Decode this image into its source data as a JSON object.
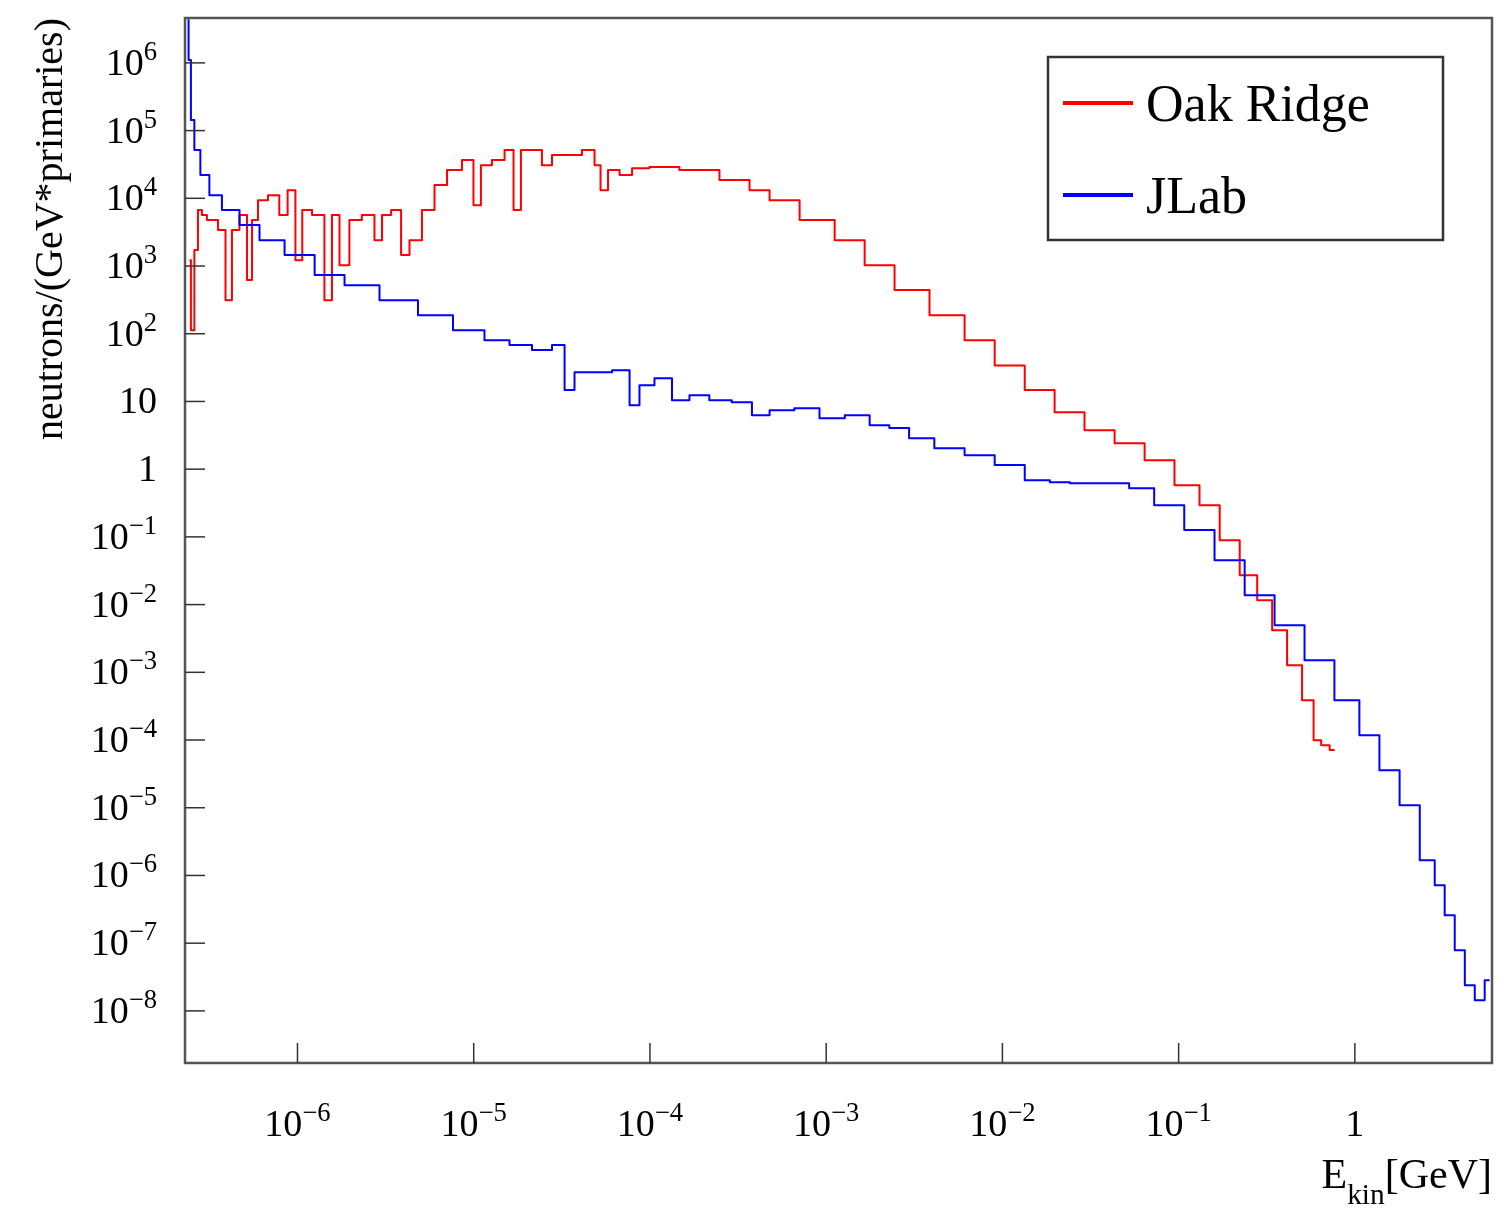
{
  "chart_data": {
    "type": "step",
    "xlabel": "E$_{kin}$[GeV]",
    "ylabel": "neutrons/(GeV*primaries)",
    "log": "xy",
    "grid": false,
    "legend": "top right",
    "line_style": "solid",
    "xlim": [
      2.3e-07,
      6
    ],
    "ylim": [
      1.7e-09,
      4600000.0
    ],
    "xticks": [
      {
        "value": 1e-06,
        "label": "10$^{−6}$"
      },
      {
        "value": 1e-05,
        "label": "10$^{−5}$"
      },
      {
        "value": 0.0001,
        "label": "10$^{−4}$"
      },
      {
        "value": 0.001,
        "label": "10$^{−3}$"
      },
      {
        "value": 0.01,
        "label": "10$^{−2}$"
      },
      {
        "value": 0.1,
        "label": "10$^{−1}$"
      },
      1
    ],
    "yticks": [
      {
        "value": 1000000.0,
        "label": "10$^{6}$"
      },
      {
        "value": 100000.0,
        "label": "10$^{5}$"
      },
      {
        "value": 10000.0,
        "label": "10$^{4}$"
      },
      {
        "value": 1000.0,
        "label": "10$^{3}$"
      },
      {
        "value": 100.0,
        "label": "10$^{2}$"
      },
      10,
      1,
      {
        "value": 0.1,
        "label": "10$^{−1}$"
      },
      {
        "value": 0.01,
        "label": "10$^{−2}$"
      },
      {
        "value": 0.001,
        "label": "10$^{−3}$"
      },
      {
        "value": 0.0001,
        "label": "10$^{−4}$"
      },
      {
        "value": 1e-05,
        "label": "10$^{−5}$"
      },
      {
        "value": 1e-06,
        "label": "10$^{−6}$"
      },
      {
        "value": 1e-07,
        "label": "10$^{−7}$"
      },
      {
        "value": 1e-08,
        "label": "10$^{−8}$"
      }
    ],
    "series": [
      {
        "name": "Oak Ridge",
        "color": "#ff0000",
        "x": [
          2.44e-07,
          2.53e-07,
          2.67e-07,
          2.78e-07,
          2.96e-07,
          3.17e-07,
          3.38e-07,
          3.71e-07,
          4.11e-07,
          4.39e-07,
          5e-07,
          5.35e-07,
          5.7e-07,
          6.25e-07,
          7.4e-07,
          8.4e-07,
          9.2e-07,
          1.03e-06,
          1.1e-06,
          1.33e-06,
          1.52e-06,
          1.62e-06,
          1.85e-06,
          2.1e-06,
          2.56e-06,
          2.92e-06,
          3.12e-06,
          3.7e-06,
          4.05e-06,
          4.61e-06,
          5.61e-06,
          6.4e-06,
          7.78e-06,
          9.46e-06,
          1.05e-05,
          1.15e-05,
          1.4e-05,
          1.6e-05,
          1.77e-05,
          1.94e-05,
          2.36e-05,
          2.52e-05,
          3.07e-05,
          3.73e-05,
          4.54e-05,
          5.18e-05,
          5.31e-05,
          6.3e-05,
          7.18e-05,
          8.73e-05,
          0.000113,
          0.000191,
          0.000322,
          0.000419,
          0.000544,
          0.000918,
          0.00136,
          0.00201,
          0.00297,
          0.00501,
          0.00743,
          0.011,
          0.0163,
          0.024,
          0.0356,
          0.0527,
          0.078,
          0.115,
          0.15,
          0.195,
          0.253,
          0.308,
          0.374,
          0.455,
          0.553,
          0.615,
          0.674,
          0.768
        ],
        "values": [
          1220,
          113,
          1720,
          6700,
          5650,
          4770,
          4770,
          3390,
          313,
          3390,
          5650,
          620,
          4770,
          9400,
          11100,
          5650,
          13200,
          1220,
          6700,
          5650,
          313,
          5650,
          1030,
          4770,
          5650,
          2410,
          5650,
          6700,
          1450,
          2410,
          6700,
          15700,
          26100,
          36700,
          7900,
          30900,
          36700,
          51500,
          6700,
          51500,
          51500,
          30900,
          43500,
          43500,
          51500,
          30900,
          13200,
          26100,
          22000,
          27900,
          28900,
          26100,
          18600,
          13200,
          9400,
          4770,
          2410,
          1030,
          441,
          188,
          80,
          34,
          14.7,
          6.95,
          3.77,
          2.42,
          1.36,
          0.58,
          0.294,
          0.0893,
          0.0272,
          0.0116,
          0.00419,
          0.00127,
          0.000387,
          9.9e-05,
          8.4e-05,
          7.1e-05
        ]
      },
      {
        "name": "JLab",
        "color": "#0000ff",
        "x": [
          2.38e-07,
          2.44e-07,
          2.53e-07,
          2.67e-07,
          2.96e-07,
          3.38e-07,
          4.11e-07,
          5.35e-07,
          6.93e-07,
          1.03e-06,
          1.52e-06,
          2.25e-06,
          3.79e-06,
          6.15e-06,
          9.46e-06,
          1.4e-05,
          1.82e-05,
          2.52e-05,
          3.07e-05,
          3.5e-05,
          3.98e-05,
          5.18e-05,
          7.18e-05,
          8.18e-05,
          9.3e-05,
          0.000121,
          0.000147,
          0.000191,
          0.000247,
          0.000343,
          0.000419,
          0.000544,
          0.0008,
          0.00105,
          0.00155,
          0.00201,
          0.00259,
          0.00337,
          0.00501,
          0.00743,
          0.011,
          0.0163,
          0.0212,
          0.0275,
          0.046,
          0.0597,
          0.0884,
          0.131,
          0.195,
          0.288,
          0.426,
          0.63,
          0.93,
          1.21,
          1.57,
          2.05,
          2.66,
          3.03,
          3.45,
          3.94,
          4.49,
          5.11,
          5.82
        ],
        "values": [
          4290000.0,
          1100000.0,
          143000.0,
          51500,
          22000,
          11100,
          6700,
          4020,
          2410,
          1450,
          734,
          522,
          313,
          188,
          113,
          80,
          67.9,
          57.3,
          67.9,
          14.7,
          27.1,
          27.1,
          29,
          8.82,
          17.4,
          22.1,
          10.4,
          12.4,
          10.4,
          9.77,
          6.28,
          7.44,
          7.96,
          5.67,
          6.28,
          4.47,
          4.04,
          2.87,
          2.04,
          1.61,
          1.15,
          0.688,
          0.643,
          0.621,
          0.621,
          0.524,
          0.294,
          0.126,
          0.0453,
          0.0138,
          0.00496,
          0.00151,
          0.000387,
          0.000118,
          3.58e-05,
          1.09e-05,
          1.68e-06,
          7.16e-07,
          2.58e-07,
          7.85e-08,
          2.39e-08,
          1.43e-08,
          2.83e-08
        ]
      }
    ]
  }
}
